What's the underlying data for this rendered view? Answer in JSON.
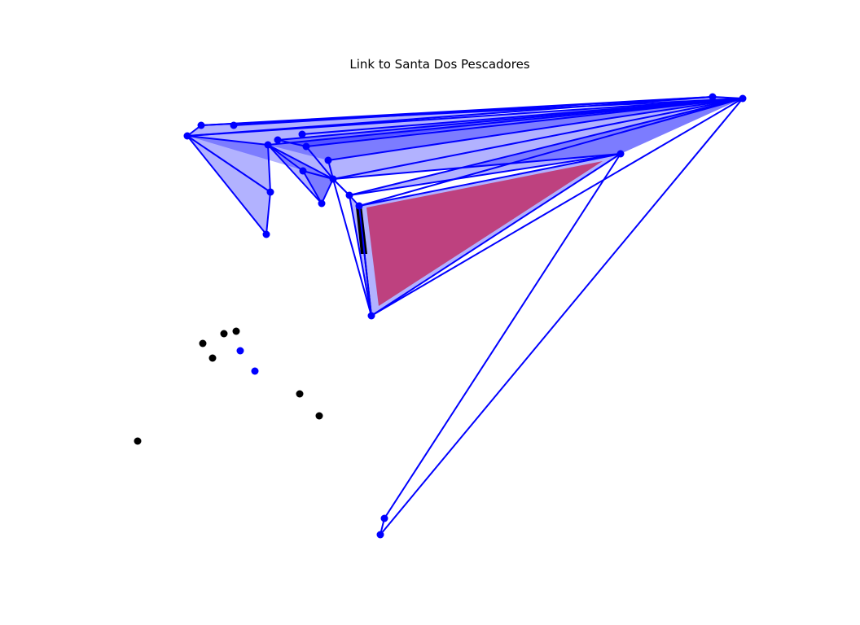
{
  "title": "Link to Santa Dos Pescadores",
  "colors": {
    "link": "#0000ff",
    "link_fill": "rgba(0,0,255,0.30)",
    "link_fill_dark": "rgba(0,0,255,0.55)",
    "highlight_fill": "#bf3b78",
    "black_node": "#000000"
  }
}
